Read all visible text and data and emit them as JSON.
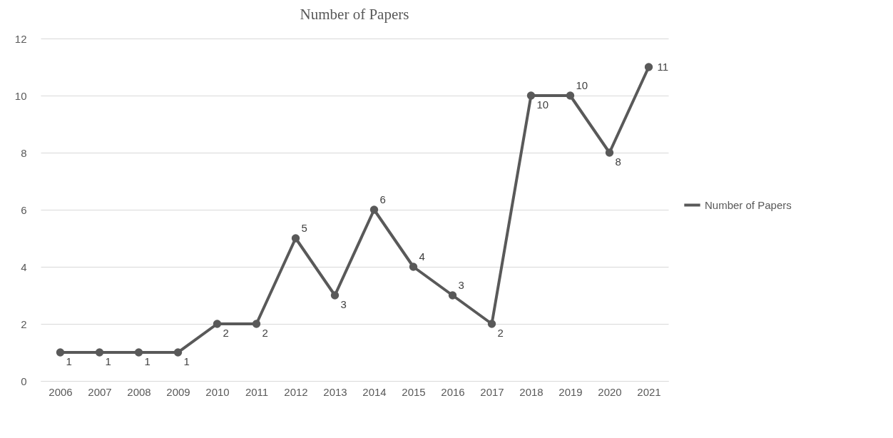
{
  "chart_data": {
    "type": "line",
    "title": "Number of Papers",
    "categories": [
      "2006",
      "2007",
      "2008",
      "2009",
      "2010",
      "2011",
      "2012",
      "2013",
      "2014",
      "2015",
      "2016",
      "2017",
      "2018",
      "2019",
      "2020",
      "2021"
    ],
    "series": [
      {
        "name": "Number of Papers",
        "color": "#595959",
        "values": [
          1,
          1,
          1,
          1,
          2,
          2,
          5,
          3,
          6,
          4,
          3,
          2,
          10,
          10,
          8,
          11
        ]
      }
    ],
    "ylim": [
      0,
      12
    ],
    "yticks": [
      0,
      2,
      4,
      6,
      8,
      10,
      12
    ],
    "grid": "y",
    "legend": "right",
    "marker": "circle",
    "line_style": "solid",
    "data_labels": true
  }
}
